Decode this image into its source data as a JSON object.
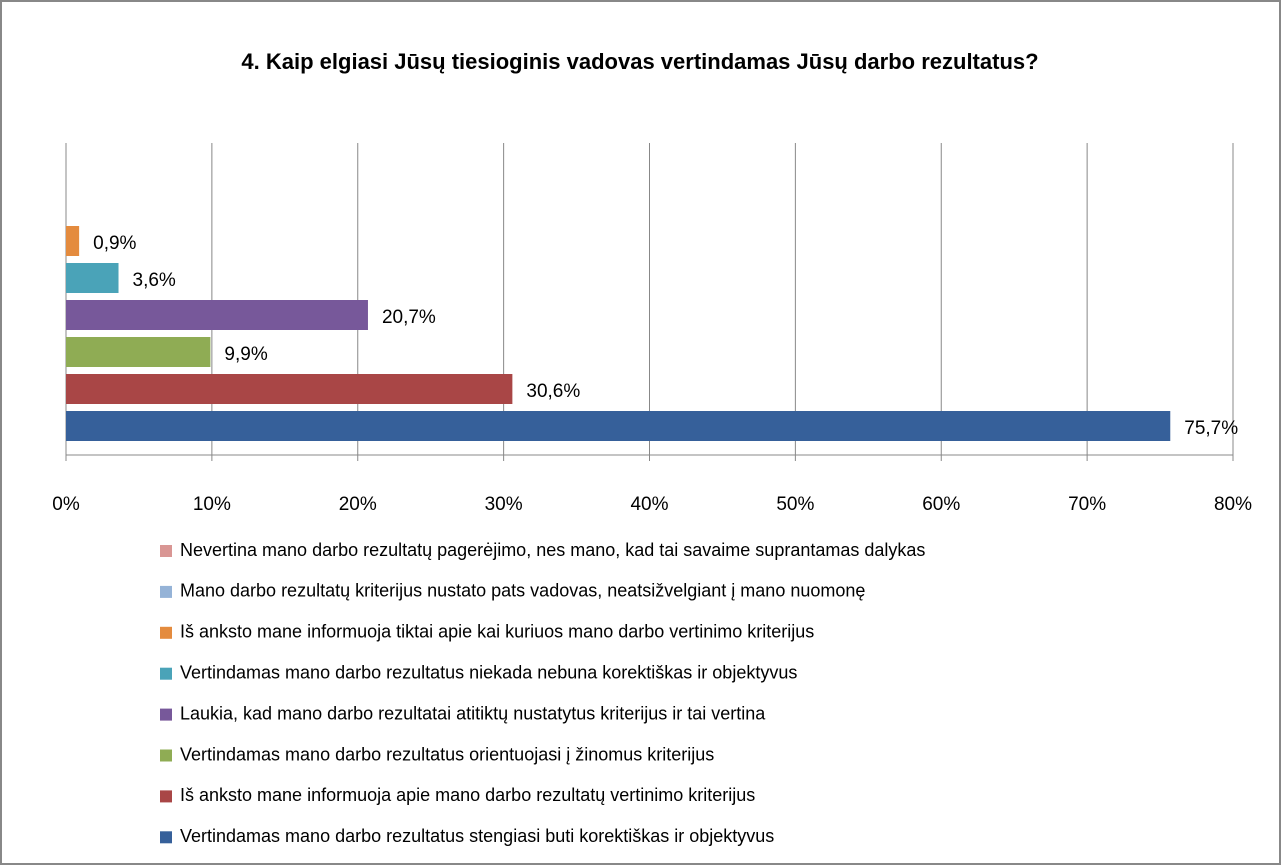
{
  "chart_data": {
    "type": "bar",
    "orientation": "horizontal",
    "title": "4. Kaip elgiasi Jūsų tiesioginis vadovas vertindamas Jūsų darbo rezultatus?",
    "xlim": [
      0,
      80
    ],
    "xticks": [
      {
        "value": 0,
        "label": "0%"
      },
      {
        "value": 10,
        "label": "10%"
      },
      {
        "value": 20,
        "label": "20%"
      },
      {
        "value": 30,
        "label": "30%"
      },
      {
        "value": 40,
        "label": "40%"
      },
      {
        "value": 50,
        "label": "50%"
      },
      {
        "value": 60,
        "label": "60%"
      },
      {
        "value": 70,
        "label": "70%"
      },
      {
        "value": 80,
        "label": "80%"
      }
    ],
    "grid": true,
    "legend": "bottom",
    "series": [
      {
        "name": "Nevertina mano darbo rezultatų pagerėjimo, nes mano, kad tai savaime suprantamas dalykas",
        "color": "#d99694",
        "values": [
          null
        ],
        "value_labels": [
          null
        ]
      },
      {
        "name": "Mano darbo rezultatų kriterijus nustato pats vadovas, neatsižvelgiant į mano nuomonę",
        "color": "#95b3d7",
        "values": [
          null
        ],
        "value_labels": [
          null
        ]
      },
      {
        "name": "Iš anksto mane informuoja tiktai apie kai kuriuos mano darbo  vertinimo kriterijus",
        "color": "#e48b3e",
        "values": [
          0.9
        ],
        "value_labels": [
          "0,9%"
        ]
      },
      {
        "name": "Vertindamas mano darbo rezultatus niekada nebuna korektiškas ir objektyvus",
        "color": "#4aa3b8",
        "values": [
          3.6
        ],
        "value_labels": [
          "3,6%"
        ]
      },
      {
        "name": "Laukia, kad mano darbo rezultatai atitiktų nustatytus kriterijus ir tai vertina",
        "color": "#77589a",
        "values": [
          20.7
        ],
        "value_labels": [
          "20,7%"
        ]
      },
      {
        "name": "Vertindamas mano darbo  rezultatus orientuojasi į žinomus kriterijus",
        "color": "#8fac54",
        "values": [
          9.9
        ],
        "value_labels": [
          "9,9%"
        ]
      },
      {
        "name": "Iš anksto mane informuoja apie mano darbo rezultatų vertinimo kriterijus",
        "color": "#a94646",
        "values": [
          30.6
        ],
        "value_labels": [
          "30,6%"
        ]
      },
      {
        "name": "Vertindamas mano darbo rezultatus stengiasi buti korektiškas ir objektyvus",
        "color": "#36609a",
        "values": [
          75.7
        ],
        "value_labels": [
          "75,7%"
        ]
      }
    ]
  }
}
